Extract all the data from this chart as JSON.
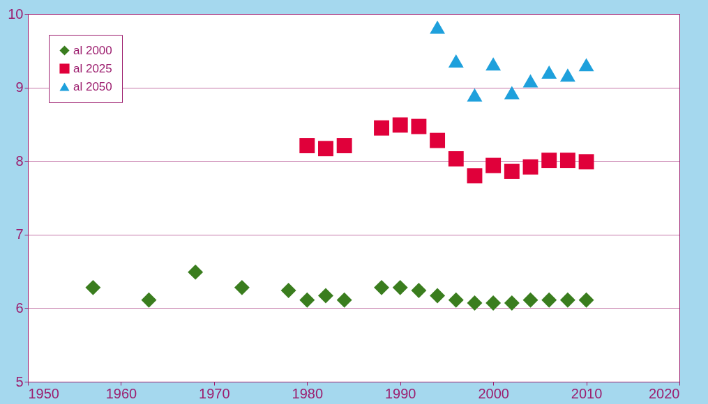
{
  "chart_data": {
    "type": "scatter",
    "xlim": [
      1950,
      2020
    ],
    "xticks": [
      1950,
      1960,
      1970,
      1980,
      1990,
      2000,
      2010,
      2020
    ],
    "ylim": [
      5,
      10
    ],
    "yticks": [
      5,
      6,
      7,
      8,
      9,
      10
    ],
    "grid": "y",
    "legend": "top left",
    "series": [
      {
        "name": "al 2000",
        "color": "#3a7d1e",
        "marker": "diamond",
        "x": [
          1957,
          1963,
          1968,
          1973,
          1978,
          1980,
          1982,
          1984,
          1988,
          1990,
          1992,
          1994,
          1996,
          1998,
          2000,
          2002,
          2004,
          2006,
          2008,
          2010
        ],
        "values": [
          6.28,
          6.11,
          6.49,
          6.28,
          6.24,
          6.11,
          6.17,
          6.11,
          6.28,
          6.28,
          6.24,
          6.17,
          6.11,
          6.07,
          6.07,
          6.07,
          6.11,
          6.11,
          6.11,
          6.11
        ]
      },
      {
        "name": "al 2025",
        "color": "#e0003a",
        "marker": "square",
        "x": [
          1980,
          1982,
          1984,
          1988,
          1990,
          1992,
          1994,
          1996,
          1998,
          2000,
          2002,
          2004,
          2006,
          2008,
          2010
        ],
        "values": [
          8.21,
          8.17,
          8.21,
          8.45,
          8.49,
          8.47,
          8.28,
          8.03,
          7.8,
          7.94,
          7.86,
          7.92,
          8.01,
          8.01,
          7.99
        ]
      },
      {
        "name": "al 2050",
        "color": "#1ea0dc",
        "marker": "triangle",
        "x": [
          1994,
          1996,
          1998,
          2000,
          2002,
          2004,
          2006,
          2008,
          2010
        ],
        "values": [
          9.82,
          9.36,
          8.9,
          9.32,
          8.93,
          9.09,
          9.21,
          9.17,
          9.31
        ]
      }
    ]
  }
}
